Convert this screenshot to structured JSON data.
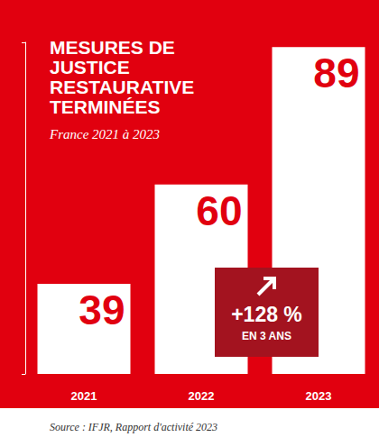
{
  "chart_data": {
    "type": "bar",
    "title": "MESURES DE JUSTICE RESTAURATIVE TERMINÉES",
    "subtitle": "France 2021 à 2023",
    "categories": [
      "2021",
      "2022",
      "2023"
    ],
    "values": [
      39,
      60,
      89
    ],
    "color": "#ffffff",
    "ylim": [
      20,
      90
    ],
    "yticks": [
      20,
      90
    ],
    "tick_labels": "x",
    "grid": false,
    "data_labels": true,
    "annotations": [
      "+128 %",
      "EN 3 ANS"
    ],
    "source": "Source : IFJR, Rapport d'activité 2023"
  }
}
